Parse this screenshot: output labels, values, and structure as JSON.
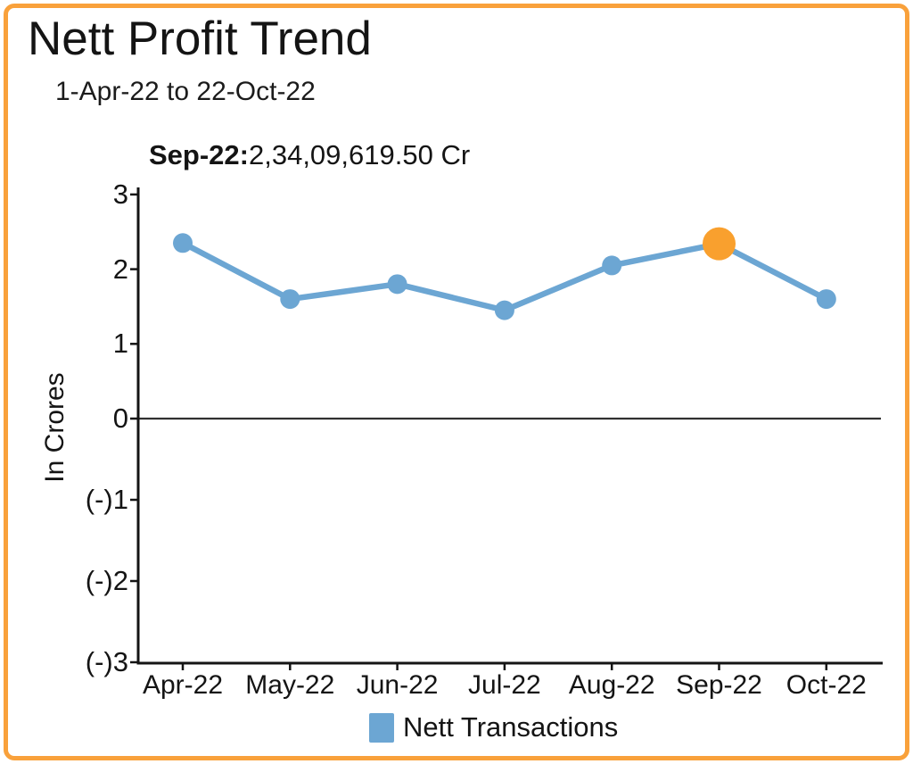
{
  "header": {
    "title": "Nett Profit Trend",
    "subtitle": "1-Apr-22 to 22-Oct-22"
  },
  "tooltip": {
    "label": "Sep-22:",
    "value": "2,34,09,619.50 Cr"
  },
  "chart_data": {
    "type": "line",
    "title": "Nett Profit Trend",
    "subtitle": "1-Apr-22 to 22-Oct-22",
    "categories": [
      "Apr-22",
      "May-22",
      "Jun-22",
      "Jul-22",
      "Aug-22",
      "Sep-22",
      "Oct-22"
    ],
    "series": [
      {
        "name": "Nett Transactions",
        "values": [
          2.35,
          1.6,
          1.8,
          1.45,
          2.05,
          2.34,
          1.6
        ]
      }
    ],
    "highlighted_point": {
      "category": "Sep-22",
      "value_crores": 2.34,
      "value_label": "2,34,09,619.50 Cr"
    },
    "xlabel": "",
    "ylabel": "In Crores",
    "ylim": [
      -3,
      3
    ],
    "y_ticks": [
      "3",
      "2",
      "1",
      "0",
      "(-)1",
      "(-)2",
      "(-)3"
    ],
    "y_tick_values": [
      3,
      2,
      1,
      0,
      -1,
      -2,
      -3
    ],
    "grid": false,
    "zero_line": true,
    "legend_position": "bottom",
    "colors": {
      "line": "#6CA6D3",
      "point": "#6CA6D3",
      "highlight": "#F9A02E",
      "frame_border": "#F9A13B",
      "axis": "#141414"
    }
  },
  "legend": {
    "label": "Nett Transactions",
    "swatch_color": "#6CA6D3"
  }
}
